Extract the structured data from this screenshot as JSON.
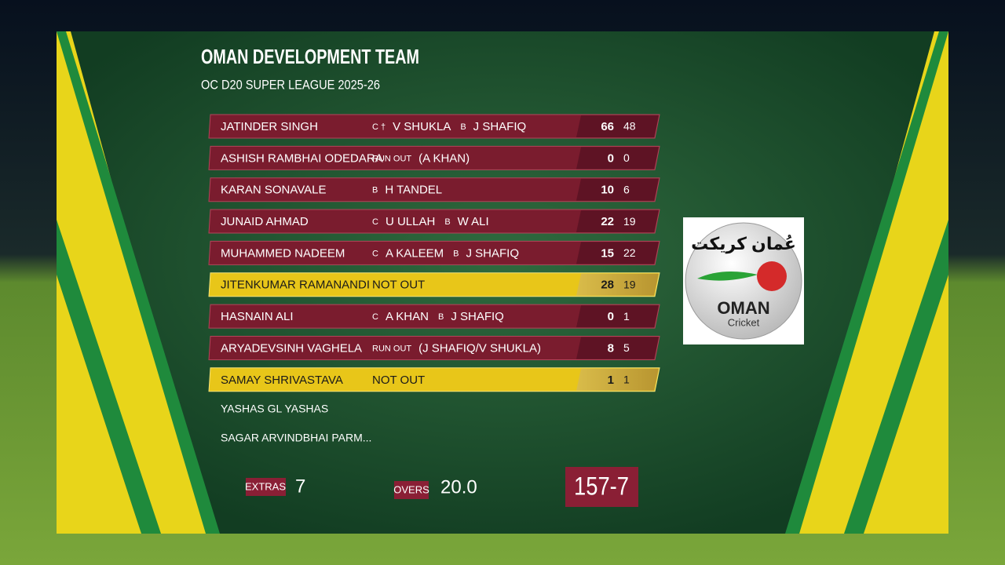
{
  "header": {
    "title": "OMAN DEVELOPMENT TEAM",
    "subtitle": "OC D20 SUPER LEAGUE 2025-26"
  },
  "batting": [
    {
      "name": "JATINDER SINGH",
      "dismissal": [
        "C †",
        "V SHUKLA",
        "B",
        "J SHAFIQ"
      ],
      "runs": 66,
      "balls": 48,
      "highlight": false
    },
    {
      "name": "ASHISH RAMBHAI ODEDARA",
      "dismissal": [
        "RUN OUT",
        "(A KHAN)"
      ],
      "runs": 0,
      "balls": 0,
      "highlight": false
    },
    {
      "name": "KARAN SONAVALE",
      "dismissal": [
        "B",
        "H TANDEL"
      ],
      "runs": 10,
      "balls": 6,
      "highlight": false
    },
    {
      "name": "JUNAID AHMAD",
      "dismissal": [
        "C",
        "U ULLAH",
        "B",
        "W ALI"
      ],
      "runs": 22,
      "balls": 19,
      "highlight": false
    },
    {
      "name": "MUHAMMED NADEEM",
      "dismissal": [
        "C",
        "A KALEEM",
        "B",
        "J SHAFIQ"
      ],
      "runs": 15,
      "balls": 22,
      "highlight": false
    },
    {
      "name": "JITENKUMAR RAMANANDI",
      "dismissal": [
        "NOT OUT"
      ],
      "runs": 28,
      "balls": 19,
      "highlight": true
    },
    {
      "name": "HASNAIN ALI",
      "dismissal": [
        "C",
        "A KHAN",
        "B",
        "J SHAFIQ"
      ],
      "runs": 0,
      "balls": 1,
      "highlight": false
    },
    {
      "name": "ARYADEVSINH VAGHELA",
      "dismissal": [
        "RUN OUT",
        "(J SHAFIQ/V SHUKLA)"
      ],
      "runs": 8,
      "balls": 5,
      "highlight": false
    },
    {
      "name": "SAMAY SHRIVASTAVA",
      "dismissal": [
        "NOT OUT"
      ],
      "runs": 1,
      "balls": 1,
      "highlight": true
    }
  ],
  "yet_to_bat": [
    "YASHAS GL YASHAS",
    "SAGAR ARVINDBHAI PARM..."
  ],
  "footer": {
    "extras_label": "EXTRAS",
    "extras": 7,
    "overs_label": "OVERS",
    "overs": "20.0",
    "total": "157-7"
  },
  "logo": {
    "arabic": "عُمان كريكت",
    "name": "OMAN",
    "tagline": "Cricket"
  }
}
